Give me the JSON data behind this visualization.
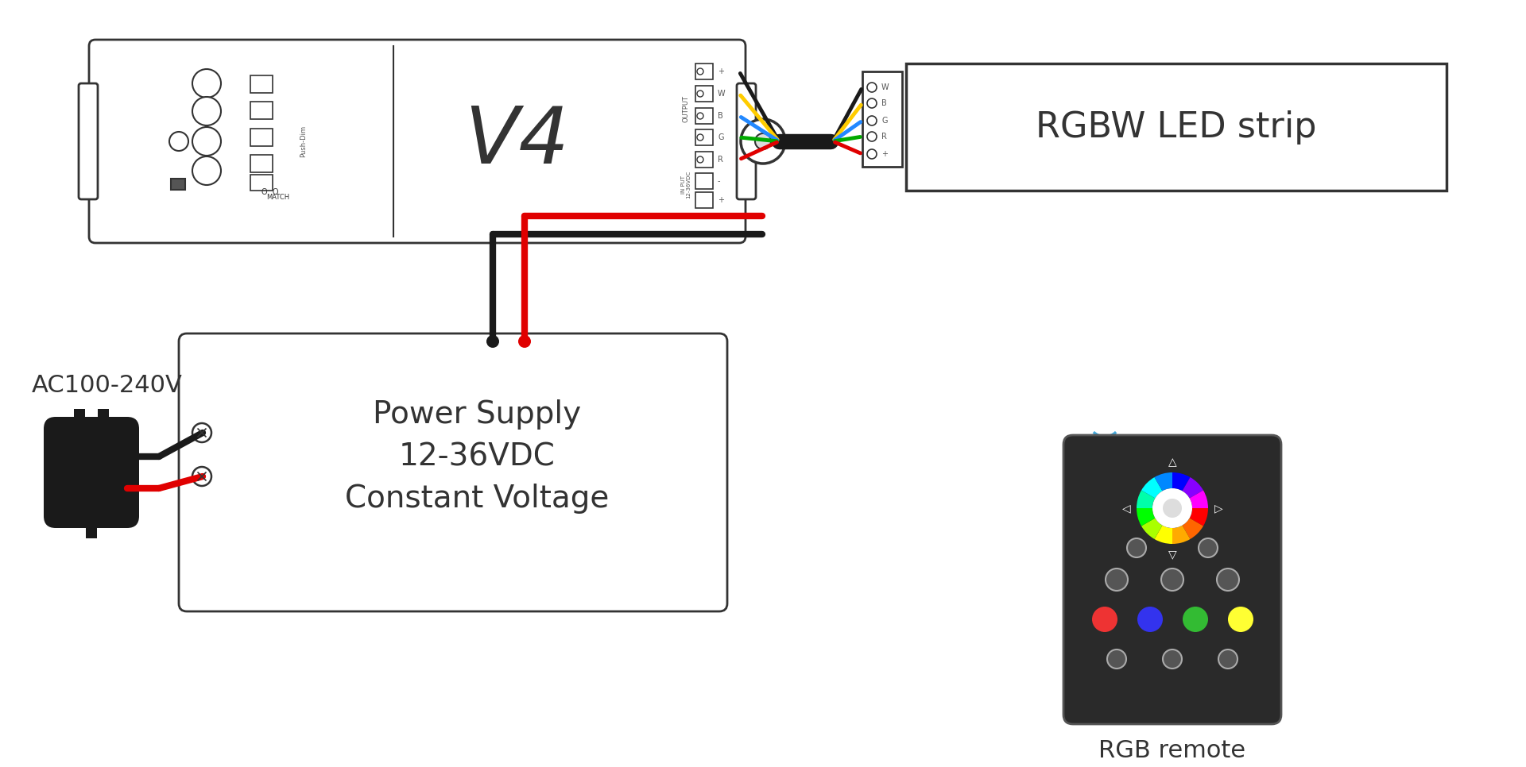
{
  "bg_color": "#ffffff",
  "controller_label": "V4",
  "led_strip_label": "RGBW LED strip",
  "power_supply_line1": "Power Supply",
  "power_supply_line2": "12-36VDC",
  "power_supply_line3": "Constant Voltage",
  "ac_label": "AC100-240V",
  "rgb_remote_label": "RGB remote",
  "wire_colors": {
    "black": "#1a1a1a",
    "red": "#e00000",
    "green": "#00aa00",
    "blue": "#2288ff",
    "yellow": "#ffcc00",
    "white": "#ffffff"
  },
  "outline_color": "#333333",
  "text_color": "#222222",
  "wifi_color": "#44aadd"
}
